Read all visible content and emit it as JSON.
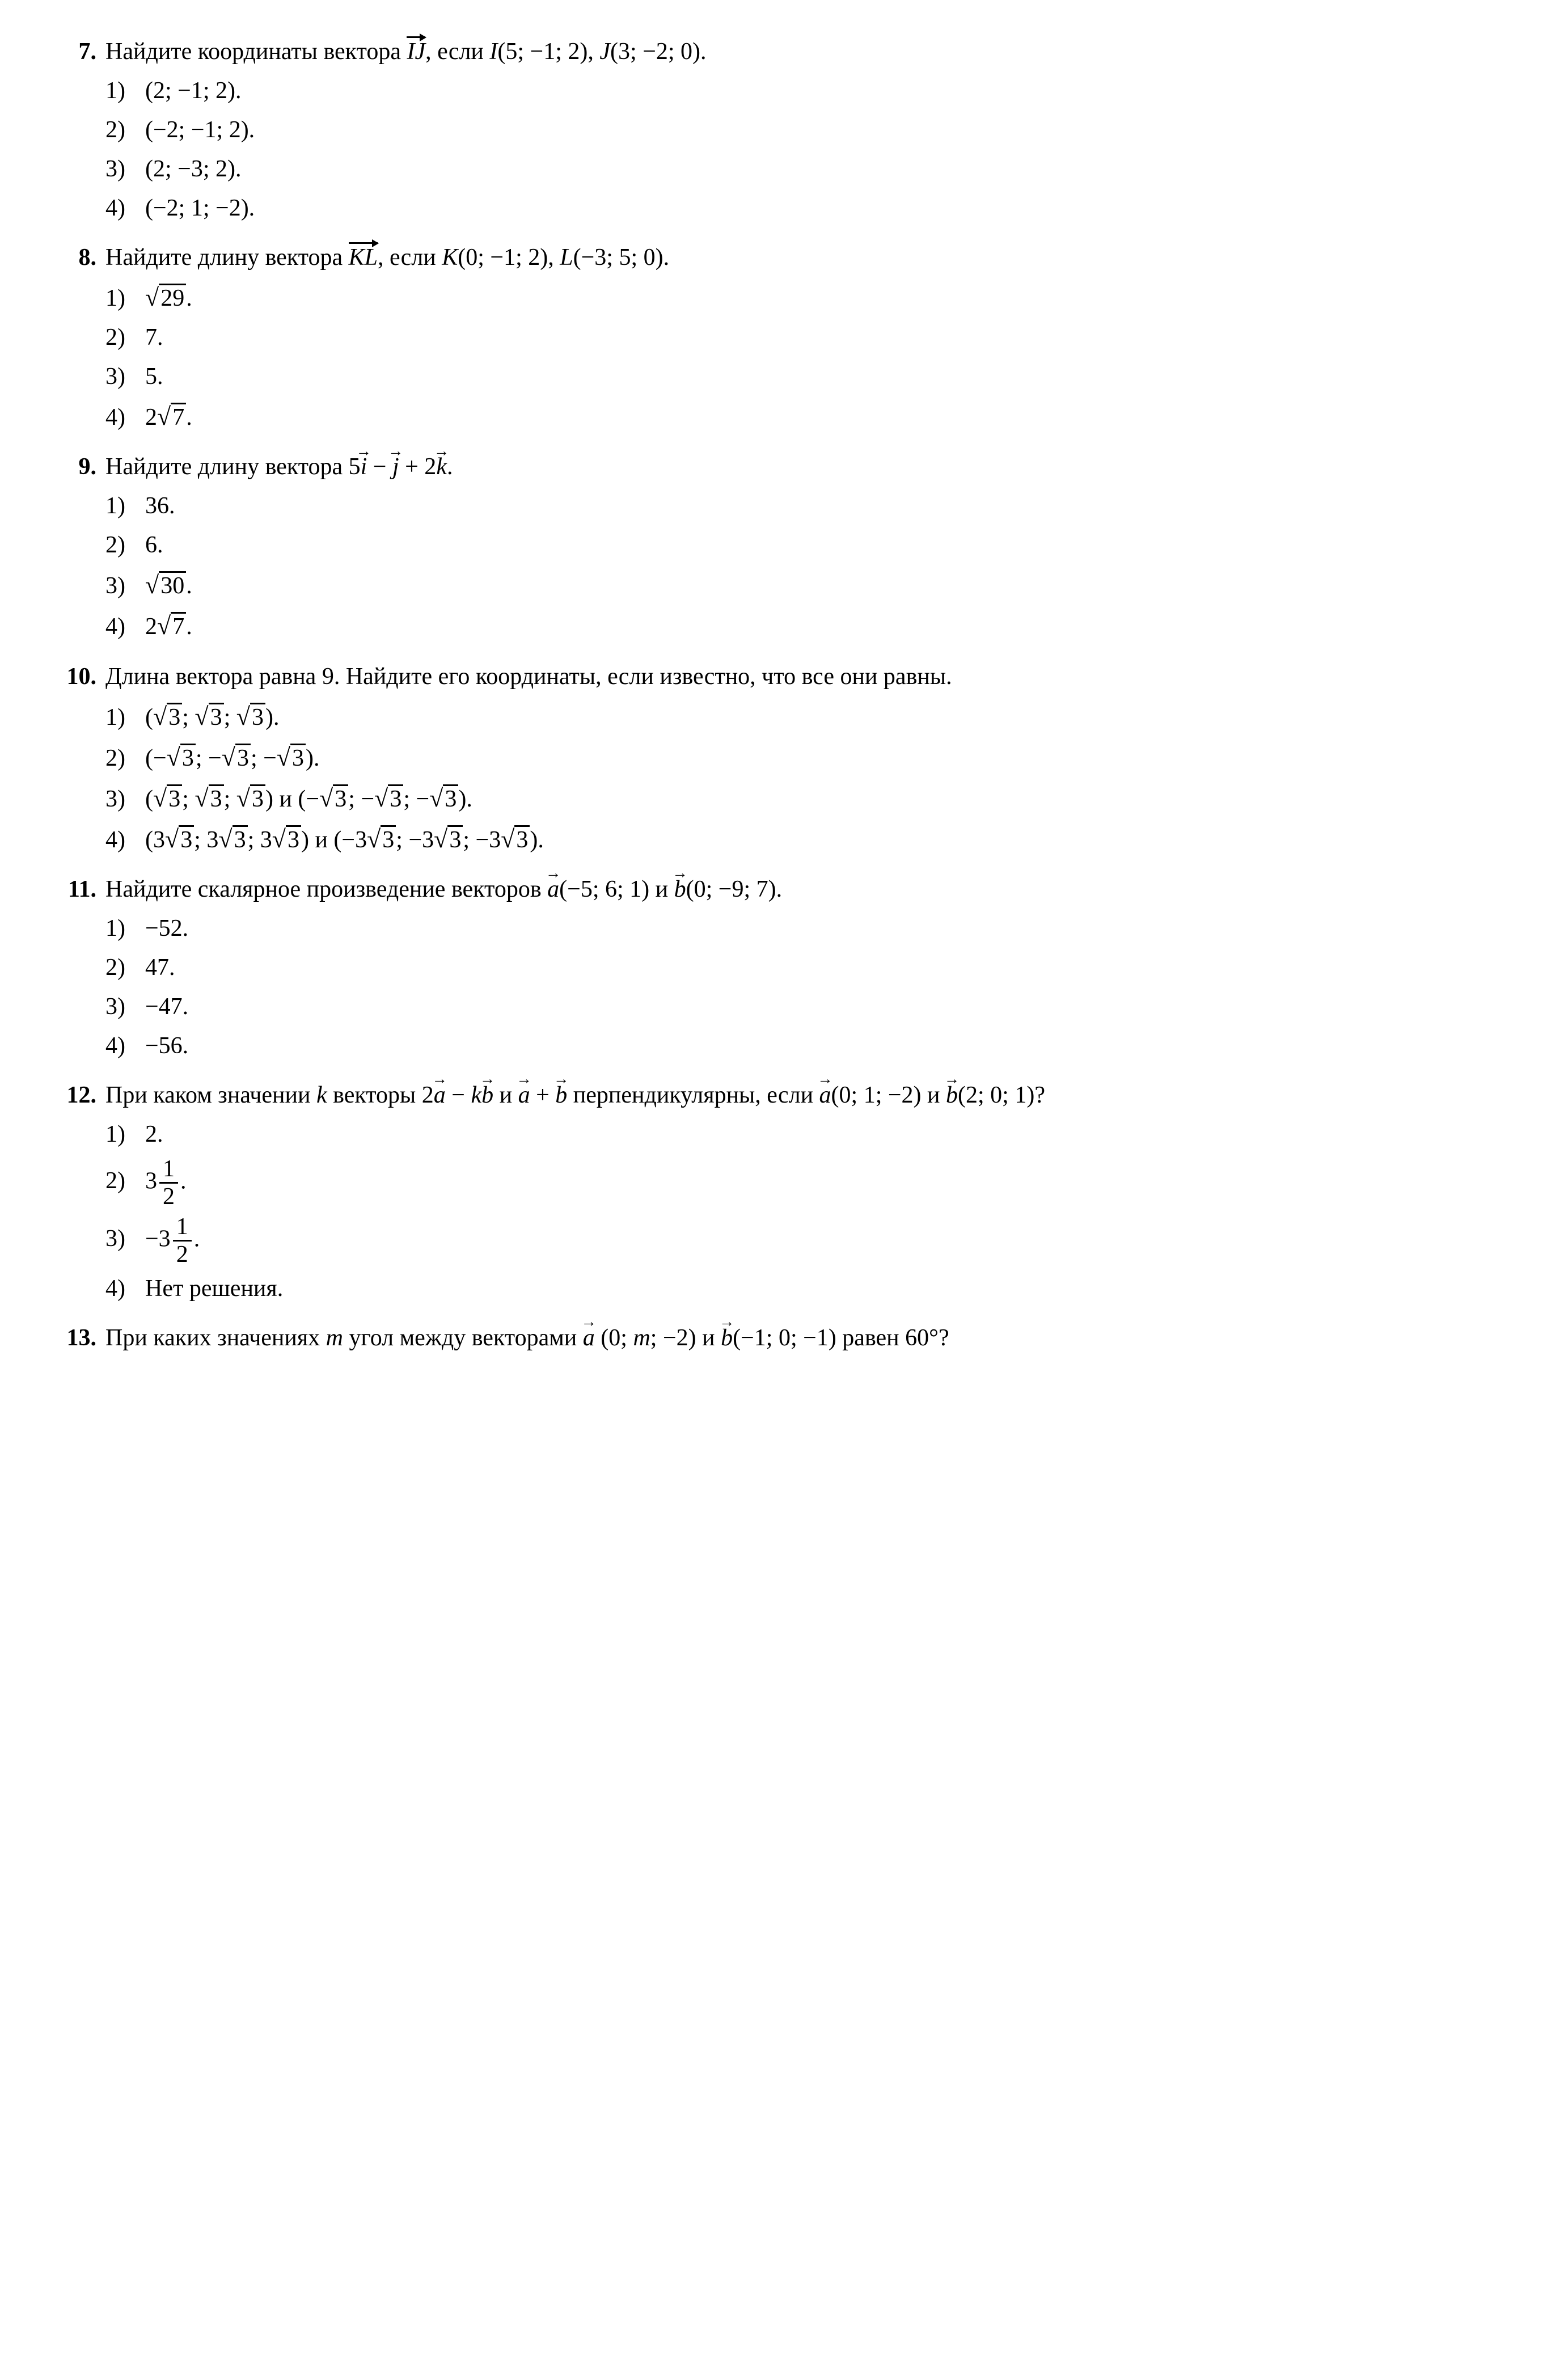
{
  "problems": [
    {
      "num": "7.",
      "prompt_html": "Найдите координаты вектора <span class=\"overline-vec\">IJ</span>, если <span class=\"ital\">I</span>(5; −1; 2), <span class=\"ital\">J</span>(3; −2; 0).",
      "options": [
        "(2; −1; 2).",
        "(−2; −1; 2).",
        "(2; −3; 2).",
        "(−2; 1; −2)."
      ]
    },
    {
      "num": "8.",
      "prompt_html": "Найдите длину вектора <span class=\"overline-vec\">KL</span>, если <span class=\"ital\">K</span>(0; −1; 2), <span class=\"ital\">L</span>(−3; 5; 0).",
      "options": [
        "<span class=\"sqrt\"><span class=\"radicand\">29</span></span>.",
        "7.",
        "5.",
        "2<span class=\"sqrt\"><span class=\"radicand\">7</span></span>."
      ]
    },
    {
      "num": "9.",
      "prompt_html": "Найдите длину вектора 5<span class=\"arrow-vec ital\">i</span> − <span class=\"arrow-vec ital\">j</span> + 2<span class=\"arrow-vec ital\">k</span>.",
      "options": [
        "36.",
        "6.",
        "<span class=\"sqrt\"><span class=\"radicand\">30</span></span>.",
        "2<span class=\"sqrt\"><span class=\"radicand\">7</span></span>."
      ]
    },
    {
      "num": "10.",
      "prompt_html": "Длина вектора равна 9. Найдите его координаты, если известно, что все они равны.",
      "options": [
        "(<span class=\"sqrt\"><span class=\"radicand\">3</span></span>; <span class=\"sqrt\"><span class=\"radicand\">3</span></span>; <span class=\"sqrt\"><span class=\"radicand\">3</span></span>).",
        "(−<span class=\"sqrt\"><span class=\"radicand\">3</span></span>; −<span class=\"sqrt\"><span class=\"radicand\">3</span></span>; −<span class=\"sqrt\"><span class=\"radicand\">3</span></span>).",
        "(<span class=\"sqrt\"><span class=\"radicand\">3</span></span>; <span class=\"sqrt\"><span class=\"radicand\">3</span></span>; <span class=\"sqrt\"><span class=\"radicand\">3</span></span>) и (−<span class=\"sqrt\"><span class=\"radicand\">3</span></span>; −<span class=\"sqrt\"><span class=\"radicand\">3</span></span>; −<span class=\"sqrt\"><span class=\"radicand\">3</span></span>).",
        "(3<span class=\"sqrt\"><span class=\"radicand\">3</span></span>; 3<span class=\"sqrt\"><span class=\"radicand\">3</span></span>; 3<span class=\"sqrt\"><span class=\"radicand\">3</span></span>) и (−3<span class=\"sqrt\"><span class=\"radicand\">3</span></span>; −3<span class=\"sqrt\"><span class=\"radicand\">3</span></span>; −3<span class=\"sqrt\"><span class=\"radicand\">3</span></span>)."
      ]
    },
    {
      "num": "11.",
      "prompt_html": "Найдите скалярное произведение векторов <span class=\"arrow-vec ital\">a</span>(−5; 6; 1) и <span class=\"arrow-vec ital\">b</span>(0; −9; 7).",
      "options": [
        "−52.",
        "47.",
        "−47.",
        "−56."
      ]
    },
    {
      "num": "12.",
      "prompt_html": "При каком значении <span class=\"ital\">k</span> векторы 2<span class=\"arrow-vec ital\">a</span> − <span class=\"ital\">k</span><span class=\"arrow-vec ital\">b</span> и <span class=\"arrow-vec ital\">a</span> + <span class=\"arrow-vec ital\">b</span> перпендикулярны, если <span class=\"arrow-vec ital\">a</span>(0; 1; −2) и <span class=\"arrow-vec ital\">b</span>(2; 0; 1)?",
      "options": [
        "2.",
        "3<span class=\"frac\"><span class=\"num\">1</span><span class=\"den\">2</span></span>.",
        "−3<span class=\"frac\"><span class=\"num\">1</span><span class=\"den\">2</span></span>.",
        "Нет решения."
      ]
    },
    {
      "num": "13.",
      "prompt_html": "При каких значениях <span class=\"ital\">m</span> угол между векторами <span class=\"arrow-vec ital\">a</span> (0; <span class=\"ital\">m</span>; −2) и <span class=\"arrow-vec ital\">b</span>(−1; 0; −1) равен 60°?",
      "options": []
    }
  ],
  "option_labels": [
    "1)",
    "2)",
    "3)",
    "4)"
  ]
}
